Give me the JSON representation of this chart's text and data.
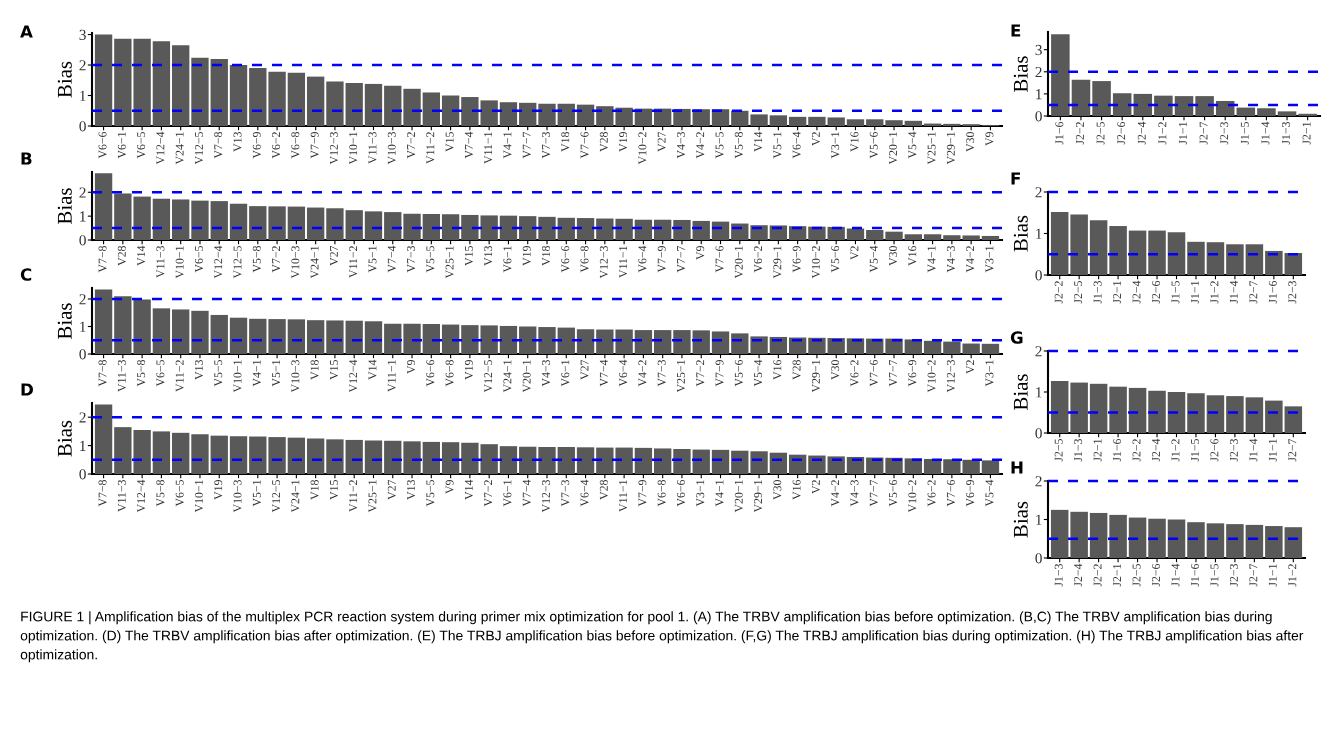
{
  "chart_data": [
    {
      "type": "bar",
      "title": "A",
      "ylabel": "Bias",
      "color": "#595959",
      "grid": false,
      "ylim": [
        0,
        3.05
      ],
      "yticks": [
        0,
        1,
        2,
        3
      ],
      "categories": [
        "V6−6",
        "V6−1",
        "V6−5",
        "V12−4",
        "V24−1",
        "V12−5",
        "V7−8",
        "V13",
        "V6−9",
        "V6−2",
        "V6−8",
        "V7−9",
        "V12−3",
        "V10−1",
        "V11−3",
        "V10−3",
        "V7−2",
        "V11−2",
        "V15",
        "V7−4",
        "V11−1",
        "V4−1",
        "V7−7",
        "V7−3",
        "V18",
        "V7−6",
        "V28",
        "V19",
        "V10−2",
        "V27",
        "V4−3",
        "V4−2",
        "V5−5",
        "V5−8",
        "V14",
        "V5−1",
        "V6−4",
        "V2",
        "V3−1",
        "V16",
        "V5−6",
        "V20−1",
        "V5−4",
        "V25−1",
        "V29−1",
        "V30",
        "V9"
      ],
      "values": [
        3.0,
        2.86,
        2.86,
        2.78,
        2.65,
        2.24,
        2.2,
        2.0,
        1.9,
        1.78,
        1.75,
        1.62,
        1.46,
        1.41,
        1.38,
        1.32,
        1.22,
        1.1,
        1.0,
        0.95,
        0.84,
        0.78,
        0.76,
        0.73,
        0.73,
        0.7,
        0.65,
        0.6,
        0.57,
        0.57,
        0.56,
        0.55,
        0.55,
        0.5,
        0.38,
        0.35,
        0.3,
        0.3,
        0.28,
        0.22,
        0.22,
        0.19,
        0.17,
        0.08,
        0.07,
        0.06,
        0.03
      ],
      "ref_lines": [
        {
          "axis": "y",
          "value": 2,
          "color": "#0000ff",
          "line_style": "dashed"
        },
        {
          "axis": "y",
          "value": 0.5,
          "color": "#0000ff",
          "line_style": "dashed"
        }
      ],
      "annotations": [
        "FIGURE 1 | Amplification bias of the multiplex PCR reaction system during primer mix optimization for pool 1. (A) The TRBV amplification bias before optimization. (B,C) The TRBV amplification bias during optimization. (D) The TRBV amplification bias after optimization. (E) The TRBJ amplification bias before optimization. (F,G) The TRBJ amplification bias during optimization. (H) The TRBJ amplification bias after optimization."
      ]
    },
    {
      "type": "bar",
      "title": "B",
      "ylabel": "Bias",
      "color": "#595959",
      "grid": false,
      "ylim": [
        0,
        2.85
      ],
      "yticks": [
        0,
        1,
        2
      ],
      "categories": [
        "V7−8",
        "V28",
        "V14",
        "V11−3",
        "V10−1",
        "V6−5",
        "V12−4",
        "V12−5",
        "V5−8",
        "V7−2",
        "V10−3",
        "V24−1",
        "V27",
        "V11−2",
        "V5−1",
        "V7−4",
        "V7−3",
        "V5−5",
        "V25−1",
        "V15",
        "V13",
        "V6−1",
        "V19",
        "V18",
        "V6−6",
        "V6−8",
        "V12−3",
        "V11−1",
        "V6−4",
        "V7−9",
        "V7−7",
        "V9",
        "V7−6",
        "V20−1",
        "V6−2",
        "V29−1",
        "V6−9",
        "V10−2",
        "V5−6",
        "V2",
        "V5−4",
        "V30",
        "V16",
        "V4−1",
        "V4−3",
        "V4−2",
        "V3−1"
      ],
      "values": [
        2.8,
        1.95,
        1.82,
        1.73,
        1.7,
        1.65,
        1.63,
        1.52,
        1.42,
        1.41,
        1.4,
        1.36,
        1.33,
        1.25,
        1.2,
        1.17,
        1.1,
        1.09,
        1.08,
        1.05,
        1.03,
        1.02,
        1.0,
        0.97,
        0.93,
        0.92,
        0.9,
        0.89,
        0.85,
        0.85,
        0.84,
        0.8,
        0.77,
        0.69,
        0.62,
        0.61,
        0.58,
        0.56,
        0.55,
        0.48,
        0.42,
        0.35,
        0.24,
        0.24,
        0.2,
        0.19,
        0.17
      ],
      "ref_lines": [
        {
          "axis": "y",
          "value": 2,
          "color": "#0000ff",
          "line_style": "dashed"
        },
        {
          "axis": "y",
          "value": 0.5,
          "color": "#0000ff",
          "line_style": "dashed"
        }
      ]
    },
    {
      "type": "bar",
      "title": "C",
      "ylabel": "Bias",
      "color": "#595959",
      "grid": false,
      "ylim": [
        0,
        2.4
      ],
      "yticks": [
        0,
        1,
        2
      ],
      "categories": [
        "V7−8",
        "V11−3",
        "V5−8",
        "V6−5",
        "V11−2",
        "V13",
        "V5−5",
        "V10−1",
        "V4−1",
        "V5−1",
        "V10−3",
        "V18",
        "V15",
        "V12−4",
        "V14",
        "V11−1",
        "V9",
        "V6−6",
        "V6−8",
        "V19",
        "V12−5",
        "V24−1",
        "V20−1",
        "V4−3",
        "V6−1",
        "V27",
        "V7−4",
        "V6−4",
        "V4−2",
        "V7−3",
        "V25−1",
        "V7−2",
        "V7−9",
        "V5−6",
        "V5−4",
        "V16",
        "V28",
        "V29−1",
        "V30",
        "V6−2",
        "V7−6",
        "V7−7",
        "V6−9",
        "V10−2",
        "V12−3",
        "V2",
        "V3−1"
      ],
      "values": [
        2.35,
        2.1,
        1.98,
        1.66,
        1.62,
        1.57,
        1.42,
        1.32,
        1.28,
        1.27,
        1.26,
        1.23,
        1.22,
        1.21,
        1.19,
        1.1,
        1.1,
        1.09,
        1.07,
        1.05,
        1.04,
        1.02,
        1.0,
        0.98,
        0.96,
        0.9,
        0.89,
        0.89,
        0.87,
        0.87,
        0.87,
        0.86,
        0.82,
        0.75,
        0.64,
        0.62,
        0.6,
        0.59,
        0.58,
        0.57,
        0.56,
        0.56,
        0.53,
        0.48,
        0.45,
        0.38,
        0.37
      ],
      "ref_lines": [
        {
          "axis": "y",
          "value": 2,
          "color": "#0000ff",
          "line_style": "dashed"
        },
        {
          "axis": "y",
          "value": 0.5,
          "color": "#0000ff",
          "line_style": "dashed"
        }
      ]
    },
    {
      "type": "bar",
      "title": "D",
      "ylabel": "Bias",
      "color": "#595959",
      "grid": false,
      "ylim": [
        0,
        2.5
      ],
      "yticks": [
        0,
        1,
        2
      ],
      "categories": [
        "V7−8",
        "V11−3",
        "V12−4",
        "V5−8",
        "V6−5",
        "V10−1",
        "V19",
        "V10−3",
        "V5−1",
        "V12−5",
        "V24−1",
        "V18",
        "V15",
        "V11−2",
        "V25−1",
        "V27",
        "V13",
        "V5−5",
        "V9",
        "V14",
        "V7−2",
        "V6−1",
        "V7−4",
        "V12−3",
        "V7−3",
        "V6−4",
        "V28",
        "V11−1",
        "V7−9",
        "V6−8",
        "V6−6",
        "V3−1",
        "V4−1",
        "V20−1",
        "V29−1",
        "V30",
        "V16",
        "V2",
        "V4−2",
        "V4−3",
        "V7−7",
        "V5−6",
        "V10−2",
        "V6−2",
        "V7−6",
        "V6−9",
        "V5−4"
      ],
      "values": [
        2.45,
        1.65,
        1.55,
        1.5,
        1.45,
        1.4,
        1.35,
        1.33,
        1.32,
        1.3,
        1.28,
        1.25,
        1.22,
        1.2,
        1.18,
        1.17,
        1.15,
        1.13,
        1.12,
        1.1,
        1.05,
        0.98,
        0.96,
        0.95,
        0.95,
        0.94,
        0.93,
        0.93,
        0.92,
        0.9,
        0.88,
        0.86,
        0.85,
        0.82,
        0.8,
        0.75,
        0.68,
        0.65,
        0.62,
        0.6,
        0.58,
        0.57,
        0.55,
        0.53,
        0.52,
        0.5,
        0.48
      ],
      "ref_lines": [
        {
          "axis": "y",
          "value": 2,
          "color": "#0000ff",
          "line_style": "dashed"
        },
        {
          "axis": "y",
          "value": 0.5,
          "color": "#0000ff",
          "line_style": "dashed"
        }
      ]
    },
    {
      "type": "bar",
      "title": "E",
      "ylabel": "Bias",
      "color": "#595959",
      "grid": false,
      "ylim": [
        0,
        3.8
      ],
      "yticks": [
        0,
        1,
        2,
        3
      ],
      "categories": [
        "J1−6",
        "J2−2",
        "J2−5",
        "J2−6",
        "J2−4",
        "J1−2",
        "J1−1",
        "J2−7",
        "J2−3",
        "J1−5",
        "J1−4",
        "J1−3",
        "J2−1"
      ],
      "values": [
        3.7,
        1.64,
        1.58,
        1.03,
        1.0,
        0.92,
        0.9,
        0.9,
        0.68,
        0.38,
        0.35,
        0.21,
        0.1
      ],
      "ref_lines": [
        {
          "axis": "y",
          "value": 2,
          "color": "#0000ff",
          "line_style": "dashed"
        },
        {
          "axis": "y",
          "value": 0.5,
          "color": "#0000ff",
          "line_style": "dashed"
        }
      ]
    },
    {
      "type": "bar",
      "title": "F",
      "ylabel": "Bias",
      "color": "#595959",
      "grid": false,
      "ylim": [
        0,
        2.0
      ],
      "yticks": [
        0,
        1,
        2
      ],
      "categories": [
        "J2−2",
        "J2−5",
        "J1−3",
        "J2−1",
        "J2−4",
        "J2−6",
        "J1−5",
        "J1−1",
        "J1−2",
        "J1−4",
        "J2−7",
        "J1−6",
        "J2−3"
      ],
      "values": [
        1.52,
        1.46,
        1.32,
        1.18,
        1.07,
        1.07,
        1.03,
        0.8,
        0.79,
        0.74,
        0.74,
        0.58,
        0.53
      ],
      "ref_lines": [
        {
          "axis": "y",
          "value": 2,
          "color": "#0000ff",
          "line_style": "dashed"
        },
        {
          "axis": "y",
          "value": 0.5,
          "color": "#0000ff",
          "line_style": "dashed"
        }
      ]
    },
    {
      "type": "bar",
      "title": "G",
      "ylabel": "Bias",
      "color": "#595959",
      "grid": false,
      "ylim": [
        0,
        2.0
      ],
      "yticks": [
        0,
        1,
        2
      ],
      "categories": [
        "J2−5",
        "J1−3",
        "J2−1",
        "J1−6",
        "J2−2",
        "J2−4",
        "J1−2",
        "J1−5",
        "J2−6",
        "J2−3",
        "J1−4",
        "J1−1",
        "J2−7"
      ],
      "values": [
        1.27,
        1.23,
        1.2,
        1.13,
        1.1,
        1.03,
        1.0,
        0.97,
        0.92,
        0.9,
        0.87,
        0.79,
        0.65
      ],
      "ref_lines": [
        {
          "axis": "y",
          "value": 2,
          "color": "#0000ff",
          "line_style": "dashed"
        },
        {
          "axis": "y",
          "value": 0.5,
          "color": "#0000ff",
          "line_style": "dashed"
        }
      ]
    },
    {
      "type": "bar",
      "title": "H",
      "ylabel": "Bias",
      "color": "#595959",
      "grid": false,
      "ylim": [
        0,
        2.0
      ],
      "yticks": [
        0,
        1,
        2
      ],
      "categories": [
        "J1−3",
        "J2−4",
        "J2−2",
        "J2−1",
        "J2−5",
        "J2−6",
        "J1−4",
        "J1−6",
        "J1−5",
        "J2−3",
        "J2−7",
        "J1−1",
        "J1−2"
      ],
      "values": [
        1.25,
        1.2,
        1.17,
        1.12,
        1.05,
        1.02,
        1.0,
        0.93,
        0.9,
        0.88,
        0.86,
        0.83,
        0.8
      ],
      "ref_lines": [
        {
          "axis": "y",
          "value": 2,
          "color": "#0000ff",
          "line_style": "dashed"
        },
        {
          "axis": "y",
          "value": 0.5,
          "color": "#0000ff",
          "line_style": "dashed"
        }
      ]
    }
  ]
}
